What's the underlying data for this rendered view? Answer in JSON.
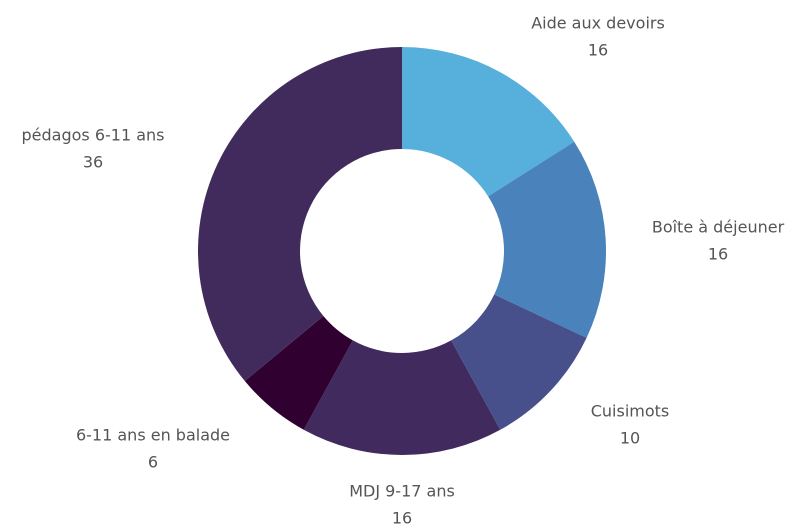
{
  "chart_data": {
    "type": "donut",
    "categories": [
      "Aide aux devoirs",
      "Boîte à déjeuner",
      "Cuisimots",
      "MDJ 9-17 ans",
      "6-11 ans en balade",
      "pédagos 6-11 ans"
    ],
    "values": [
      16,
      16,
      10,
      16,
      6,
      36
    ],
    "colors": [
      "#56b0db",
      "#4a82bb",
      "#48508c",
      "#412a5e",
      "#300030",
      "#412b5c"
    ]
  }
}
